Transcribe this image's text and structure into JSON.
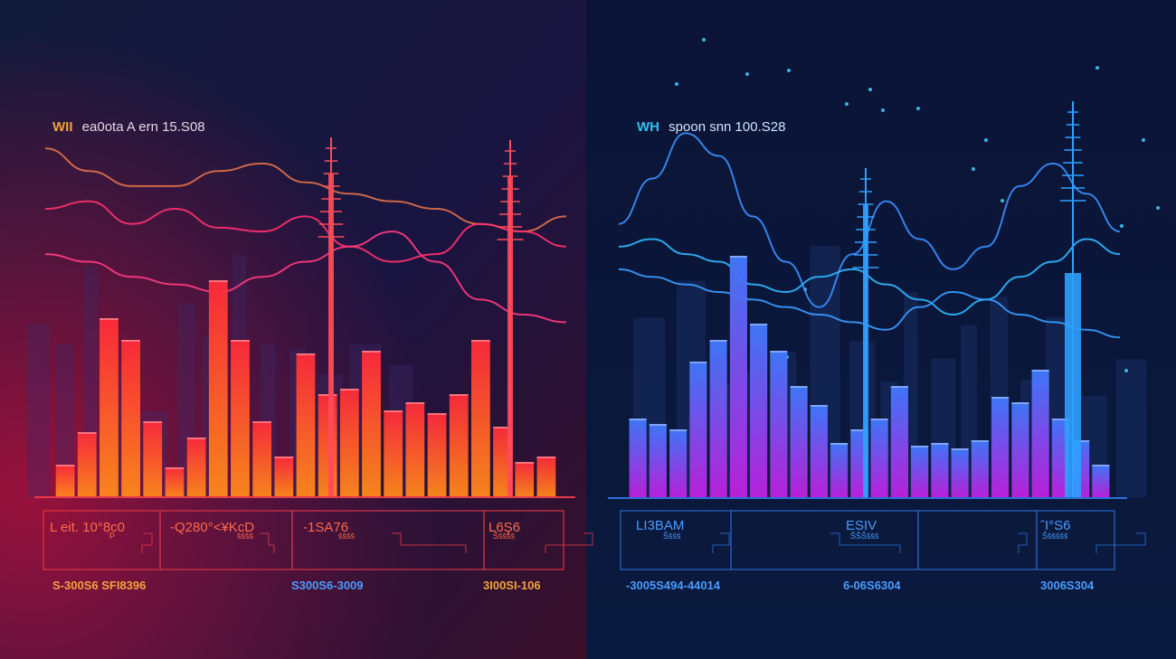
{
  "panels": [
    {
      "title_prefix": "WII",
      "title_rest": "ea0ota  A ern 15.S08",
      "colors": {
        "accent": "#f2a23a",
        "bar_top": "#ff2a3a",
        "bar_bottom": "#ff8a1a",
        "line1": "#e0704a",
        "line2": "#ff3070",
        "line3": "#ff3a80",
        "frame": "#e83a4a"
      },
      "box_labels": [
        {
          "main": "L eit. 10°8c0",
          "sub": "¨P"
        },
        {
          "main": "-Q280°<¥KcD",
          "sub": "šššš"
        },
        {
          "main": "-1SA76",
          "sub": "šššš"
        },
        {
          "main": "L6Ş6",
          "sub": "Ššššš"
        }
      ],
      "bottom_labels": [
        "S-300S6 SFI8396",
        "S300S6-3009",
        "3I00SI-106"
      ]
    },
    {
      "title_prefix": "WH",
      "title_rest": "spoon  snn 100.S28",
      "colors": {
        "accent": "#35c0ef",
        "bar_top": "#3f7bff",
        "bar_bottom": "#c020e0",
        "line1": "#3a8fff",
        "line2": "#2fb8ff",
        "line3": "#3a9cff",
        "frame": "#2b6fd8"
      },
      "box_labels": [
        {
          "main": "LI3BAM",
          "sub": "Šššš"
        },
        {
          "main": "ESIV",
          "sub": "ŠŠŠššš"
        },
        {
          "main": "ˆI°S6",
          "sub": "Šššššš"
        }
      ],
      "bottom_labels": [
        "-3005S494-44014",
        "6-06S6304",
        "3006S304"
      ]
    }
  ],
  "chart_data": [
    {
      "type": "bar",
      "title": "WII ea0ota A ern 15.S08",
      "values": [
        12,
        24,
        66,
        58,
        28,
        11,
        22,
        80,
        58,
        28,
        15,
        53,
        38,
        40,
        54,
        32,
        35,
        31,
        38,
        58,
        26,
        13,
        15
      ],
      "series_lines": [
        [
          66,
          60,
          56,
          56,
          60,
          62,
          57,
          54,
          52,
          50,
          46,
          44,
          48
        ],
        [
          50,
          52,
          46,
          50,
          45,
          44,
          48,
          40,
          36,
          38,
          46,
          44,
          40
        ],
        [
          38,
          36,
          32,
          30,
          28,
          32,
          36,
          40,
          44,
          36,
          26,
          22,
          20
        ]
      ],
      "ylim": [
        0,
        100
      ]
    },
    {
      "type": "bar",
      "title": "WH spoon snn 100.S28",
      "values": [
        29,
        27,
        25,
        50,
        58,
        89,
        64,
        54,
        41,
        34,
        20,
        25,
        29,
        41,
        19,
        20,
        18,
        21,
        37,
        35,
        47,
        29,
        21,
        12
      ],
      "series_lines": [
        [
          46,
          58,
          70,
          64,
          48,
          36,
          24,
          38,
          52,
          42,
          34,
          40,
          56,
          62,
          54,
          44
        ],
        [
          40,
          42,
          38,
          36,
          30,
          28,
          32,
          34,
          30,
          26,
          22,
          26,
          32,
          36,
          42,
          38
        ],
        [
          34,
          32,
          30,
          28,
          26,
          24,
          22,
          20,
          18,
          24,
          28,
          26,
          22,
          20,
          18,
          16
        ]
      ],
      "ylim": [
        0,
        100
      ]
    }
  ]
}
